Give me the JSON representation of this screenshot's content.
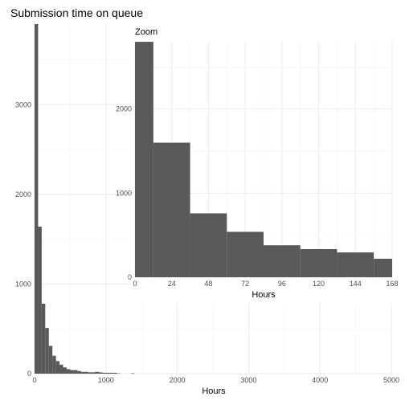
{
  "chart_data": [
    {
      "type": "histogram",
      "panel": "main",
      "title": "Submission time on queue",
      "xlabel": "Hours",
      "ylabel": "",
      "xlim": [
        0,
        5000
      ],
      "ylim": [
        0,
        3900
      ],
      "x_ticks": [
        0,
        1000,
        2000,
        3000,
        4000,
        5000
      ],
      "y_ticks": [
        0,
        1000,
        2000,
        3000
      ],
      "grid": true,
      "bin_width": 50,
      "bins": [
        {
          "x0": 0,
          "x1": 50,
          "count": 3900
        },
        {
          "x0": 50,
          "x1": 100,
          "count": 1640
        },
        {
          "x0": 100,
          "x1": 150,
          "count": 780
        },
        {
          "x0": 150,
          "x1": 200,
          "count": 510
        },
        {
          "x0": 200,
          "x1": 250,
          "count": 310
        },
        {
          "x0": 250,
          "x1": 300,
          "count": 200
        },
        {
          "x0": 300,
          "x1": 350,
          "count": 140
        },
        {
          "x0": 350,
          "x1": 400,
          "count": 100
        },
        {
          "x0": 400,
          "x1": 450,
          "count": 70
        },
        {
          "x0": 450,
          "x1": 500,
          "count": 50
        },
        {
          "x0": 500,
          "x1": 550,
          "count": 40
        },
        {
          "x0": 550,
          "x1": 600,
          "count": 40
        },
        {
          "x0": 600,
          "x1": 650,
          "count": 30
        },
        {
          "x0": 650,
          "x1": 700,
          "count": 20
        },
        {
          "x0": 700,
          "x1": 750,
          "count": 20
        },
        {
          "x0": 750,
          "x1": 800,
          "count": 15
        },
        {
          "x0": 800,
          "x1": 850,
          "count": 15
        },
        {
          "x0": 850,
          "x1": 900,
          "count": 20
        },
        {
          "x0": 900,
          "x1": 950,
          "count": 15
        },
        {
          "x0": 950,
          "x1": 1000,
          "count": 10
        },
        {
          "x0": 1000,
          "x1": 1050,
          "count": 10
        },
        {
          "x0": 1050,
          "x1": 1100,
          "count": 10
        },
        {
          "x0": 1100,
          "x1": 1150,
          "count": 10
        },
        {
          "x0": 1150,
          "x1": 1200,
          "count": 5
        },
        {
          "x0": 1350,
          "x1": 1400,
          "count": 5
        }
      ]
    },
    {
      "type": "histogram",
      "panel": "inset",
      "title": "Zoom",
      "xlabel": "Hours",
      "ylabel": "",
      "xlim": [
        0,
        168
      ],
      "ylim": [
        0,
        2800
      ],
      "x_ticks": [
        0,
        24,
        48,
        72,
        96,
        120,
        144,
        168
      ],
      "y_ticks": [
        0,
        1000,
        2000
      ],
      "grid": true,
      "bin_width": 24,
      "bins": [
        {
          "x0": 0,
          "x1": 12,
          "count": 2800
        },
        {
          "x0": 12,
          "x1": 36,
          "count": 1600
        },
        {
          "x0": 36,
          "x1": 60,
          "count": 760
        },
        {
          "x0": 60,
          "x1": 84,
          "count": 540
        },
        {
          "x0": 84,
          "x1": 108,
          "count": 380
        },
        {
          "x0": 108,
          "x1": 132,
          "count": 335
        },
        {
          "x0": 132,
          "x1": 156,
          "count": 295
        },
        {
          "x0": 156,
          "x1": 168,
          "count": 220
        }
      ]
    }
  ]
}
